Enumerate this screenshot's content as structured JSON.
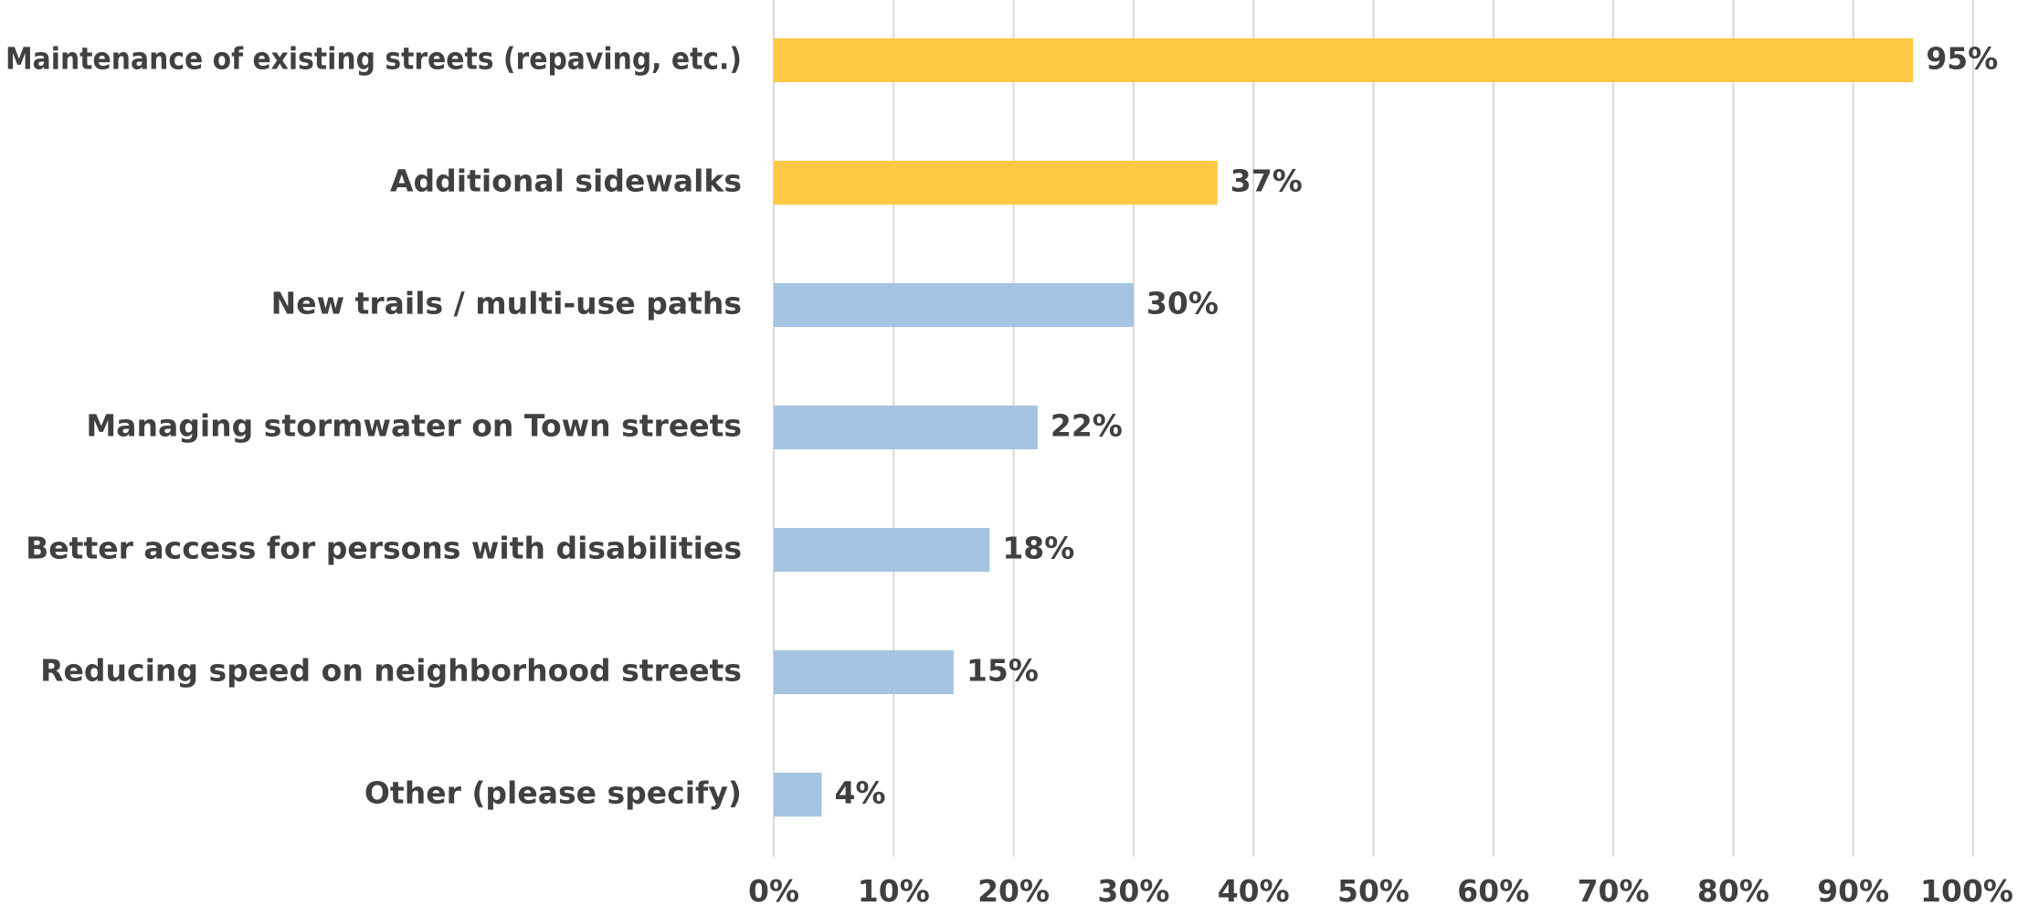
{
  "chart_data": {
    "type": "bar",
    "orientation": "horizontal",
    "title": "",
    "xlabel": "",
    "ylabel": "",
    "categories": [
      "Maintenance of existing streets (repaving, etc.)",
      "Additional sidewalks",
      "New trails / multi-use paths",
      "Managing stormwater on Town streets",
      "Better access for persons with disabilities",
      "Reducing speed on neighborhood streets",
      "Other (please specify)"
    ],
    "values": [
      95,
      37,
      30,
      22,
      18,
      15,
      4
    ],
    "value_labels": [
      "95%",
      "37%",
      "30%",
      "22%",
      "18%",
      "15%",
      "4%"
    ],
    "bar_colors": [
      "#FFC845",
      "#FFC845",
      "#A4C4E2",
      "#A4C4E2",
      "#A4C4E2",
      "#A4C4E2",
      "#A4C4E2"
    ],
    "xlim": [
      0,
      100
    ],
    "x_ticks": [
      0,
      10,
      20,
      30,
      40,
      50,
      60,
      70,
      80,
      90,
      100
    ],
    "x_tick_labels": [
      "0%",
      "10%",
      "20%",
      "30%",
      "40%",
      "50%",
      "60%",
      "70%",
      "80%",
      "90%",
      "100%"
    ],
    "grid": "vertical",
    "legend": "none",
    "text_color": "#404040",
    "grid_color": "#D9D9D9"
  }
}
